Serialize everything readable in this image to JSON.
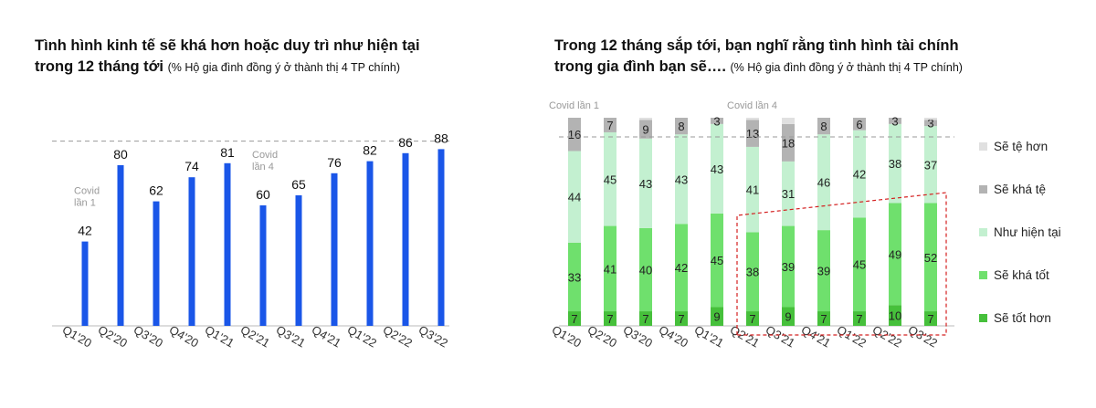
{
  "left": {
    "title": "Tình hình kinh tế sẽ khá hơn hoặc duy trì như hiện tại",
    "title2": "trong 12 tháng tới",
    "subtitle": "(% Hộ gia đình đồng ý ở thành thị 4 TP chính)"
  },
  "right": {
    "title": "Trong 12 tháng sắp tới, bạn nghĩ rằng tình hình tài chính",
    "title2": "trong gia đình bạn sẽ….",
    "subtitle": "(% Hộ gia đình đồng ý ở thành thị 4 TP chính)"
  },
  "chart_data": [
    {
      "type": "bar",
      "categories": [
        "Q1'20",
        "Q2'20",
        "Q3'20",
        "Q4'20",
        "Q1'21",
        "Q2'21",
        "Q3'21",
        "Q4'21",
        "Q1'22",
        "Q2'22",
        "Q3'22"
      ],
      "values": [
        42,
        80,
        62,
        74,
        81,
        60,
        65,
        76,
        82,
        86,
        88
      ],
      "ylim": [
        0,
        100
      ],
      "bar_color": "#1a56e8",
      "annotations": [
        {
          "category": "Q1'20",
          "line1": "Covid",
          "line2": "lần 1"
        },
        {
          "category": "Q2'21",
          "line1": "Covid",
          "line2": "lần 4"
        }
      ]
    },
    {
      "type": "bar",
      "stacked": true,
      "categories": [
        "Q1'20",
        "Q2'20",
        "Q3'20",
        "Q4'20",
        "Q1'21",
        "Q2'21",
        "Q3'21",
        "Q4'21",
        "Q1'22",
        "Q2'22",
        "Q3'22"
      ],
      "ylim": [
        0,
        100
      ],
      "series": [
        {
          "name": "Sẽ tốt hơn",
          "color": "#46c03b",
          "values": [
            7,
            7,
            7,
            7,
            9,
            7,
            9,
            7,
            7,
            10,
            7
          ]
        },
        {
          "name": "Sẽ khá tốt",
          "color": "#6fe06d",
          "values": [
            33,
            41,
            40,
            42,
            45,
            38,
            39,
            39,
            45,
            49,
            52
          ]
        },
        {
          "name": "Như hiện tại",
          "color": "#c3f0d0",
          "values": [
            44,
            45,
            43,
            43,
            43,
            41,
            31,
            46,
            42,
            38,
            37
          ]
        },
        {
          "name": "Sẽ khá tệ",
          "color": "#b3b3b3",
          "values": [
            16,
            7,
            9,
            8,
            3,
            13,
            18,
            8,
            6,
            3,
            3
          ]
        },
        {
          "name": "Sẽ tệ hơn",
          "color": "#e0e0e0",
          "values": [
            0,
            0,
            1,
            0,
            0,
            1,
            3,
            0,
            0,
            0,
            1
          ]
        }
      ],
      "legend": [
        "Sẽ tệ hơn",
        "Sẽ khá tệ",
        "Như hiện tại",
        "Sẽ khá tốt",
        "Sẽ tốt hơn"
      ],
      "legend_position": "right",
      "annotations": [
        {
          "category": "Q1'20",
          "text": "Covid lần 1"
        },
        {
          "category": "Q2'21",
          "text": "Covid lần 4"
        }
      ]
    }
  ]
}
